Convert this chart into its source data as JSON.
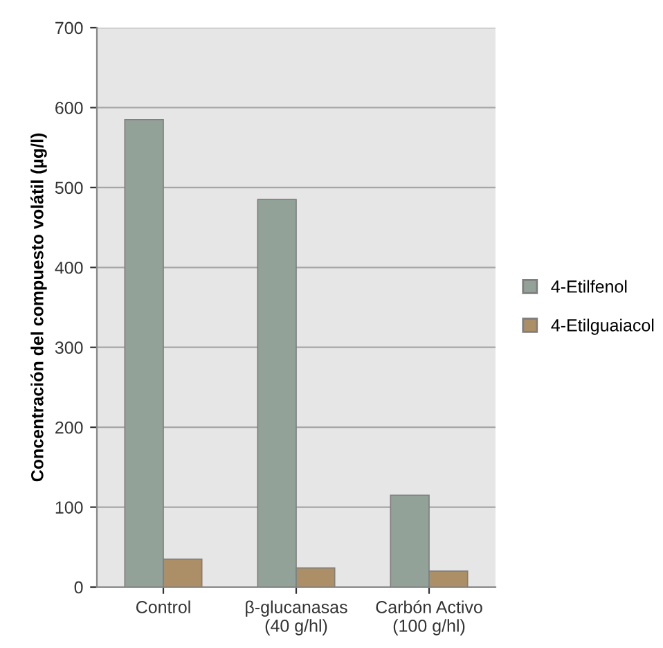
{
  "chart_data": {
    "type": "bar",
    "ylabel": "Concentración del compuesto volátil (µg/l)",
    "categories": [
      "Control",
      "β-glucanasas\n(40 g/hl)",
      "Carbón Activo\n(100 g/hl)"
    ],
    "series": [
      {
        "name": "4-Etilfenol",
        "color": "#93a299",
        "values": [
          585,
          485,
          115
        ]
      },
      {
        "name": "4-Etilguaiacol",
        "color": "#ad8f67",
        "values": [
          35,
          24,
          20
        ]
      }
    ],
    "ylim": [
      0,
      700
    ],
    "yticks": [
      0,
      100,
      200,
      300,
      400,
      500,
      600,
      700
    ],
    "grid": "y",
    "legend": "right"
  }
}
